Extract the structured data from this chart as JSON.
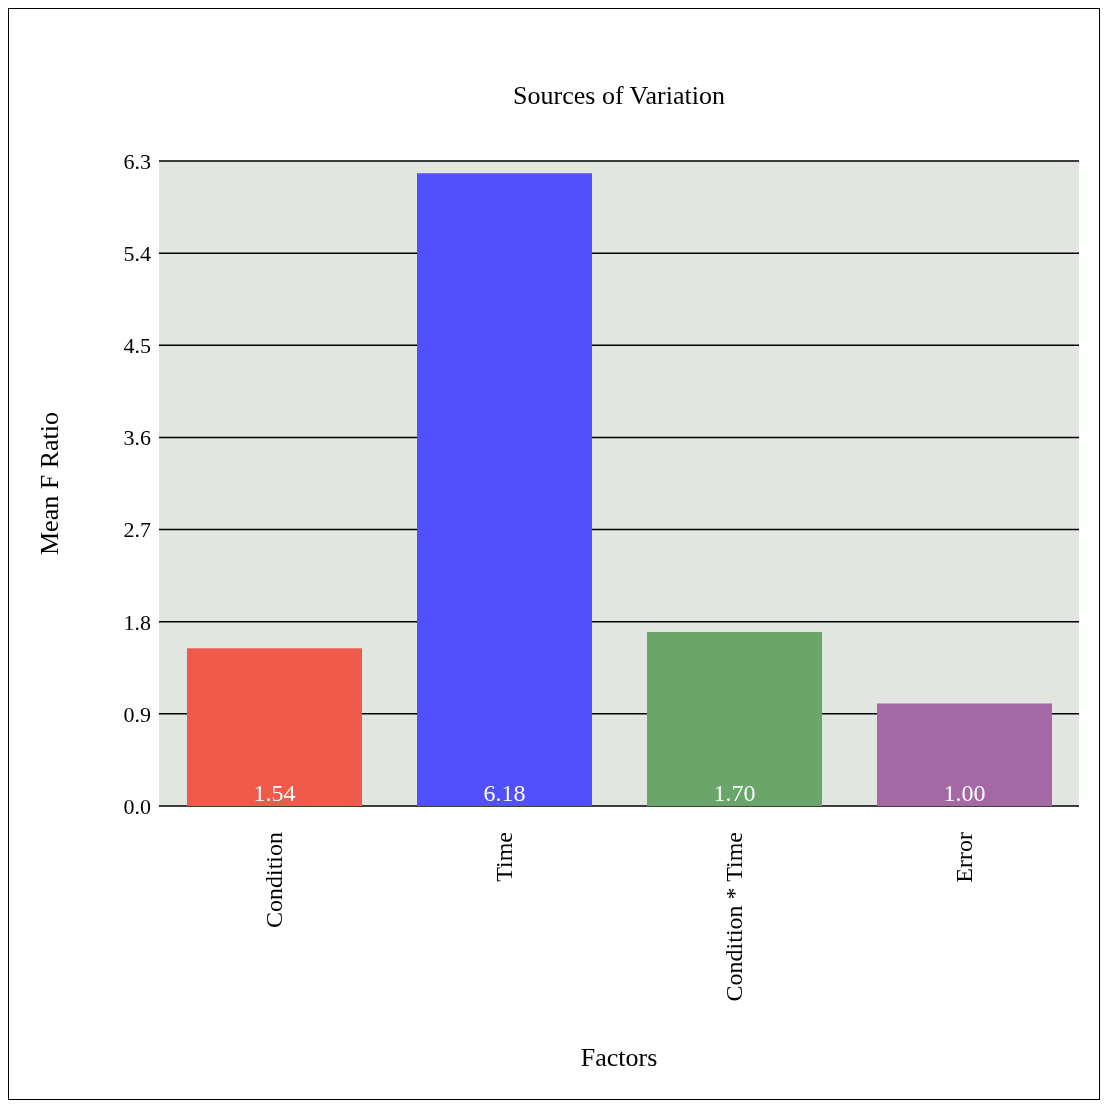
{
  "chart_data": {
    "type": "bar",
    "title": "Sources of Variation",
    "xlabel": "Factors",
    "ylabel": "Mean F Ratio",
    "categories": [
      "Condition",
      "Time",
      "Condition * Time",
      "Error"
    ],
    "values": [
      1.54,
      6.18,
      1.7,
      1.0
    ],
    "value_labels": [
      "1.54",
      "6.18",
      "1.70",
      "1.00"
    ],
    "colors": [
      "#ef5a4a",
      "#5050ff",
      "#6aa66a",
      "#a468a4"
    ],
    "ylim": [
      0,
      6.3
    ],
    "yticks": [
      {
        "value": 0,
        "label": "0.0"
      },
      0.9,
      1.8,
      2.7,
      3.6,
      4.5,
      5.4,
      6.3
    ],
    "grid": "y"
  }
}
